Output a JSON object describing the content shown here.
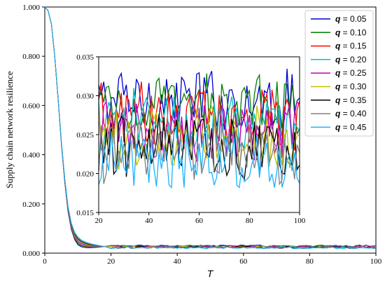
{
  "chart_data": [
    {
      "type": "line",
      "role": "main",
      "xlabel": "T",
      "ylabel": "Supply chain network resilience",
      "xlim": [
        0,
        100
      ],
      "ylim": [
        0,
        1
      ],
      "xticks": [
        0,
        20,
        40,
        60,
        80,
        100
      ],
      "yticks": [
        0.0,
        0.2,
        0.4,
        0.6,
        0.8,
        1.0
      ],
      "ytick_labels": [
        "0.000",
        "0.200",
        "0.400",
        "0.600",
        "0.800",
        "1.000"
      ],
      "legend_placement": "top-right",
      "decay_curve": {
        "x": [
          0,
          1,
          2,
          3,
          4,
          5,
          6,
          7,
          8,
          9,
          10,
          11,
          12,
          13,
          14,
          16,
          18,
          20
        ],
        "y": [
          1.0,
          0.985,
          0.93,
          0.8,
          0.63,
          0.45,
          0.3,
          0.18,
          0.11,
          0.07,
          0.05,
          0.04,
          0.035,
          0.032,
          0.03,
          0.028,
          0.027,
          0.026
        ]
      },
      "series": [
        {
          "q": "0.05",
          "name": "q = 0.05",
          "color": "#0000cc",
          "level": 0.0295
        },
        {
          "q": "0.10",
          "name": "q = 0.10",
          "color": "#008000",
          "level": 0.0285
        },
        {
          "q": "0.15",
          "name": "q = 0.15",
          "color": "#ff0000",
          "level": 0.0275
        },
        {
          "q": "0.20",
          "name": "q = 0.20",
          "color": "#00bfbf",
          "level": 0.0265
        },
        {
          "q": "0.25",
          "name": "q = 0.25",
          "color": "#bf00bf",
          "level": 0.0255
        },
        {
          "q": "0.30",
          "name": "q = 0.30",
          "color": "#bfbf00",
          "level": 0.0245
        },
        {
          "q": "0.35",
          "name": "q = 0.35",
          "color": "#000000",
          "level": 0.0235
        },
        {
          "q": "0.40",
          "name": "q = 0.40",
          "color": "#808080",
          "level": 0.0225
        },
        {
          "q": "0.45",
          "name": "q = 0.45",
          "color": "#1ab2ff",
          "level": 0.0215
        }
      ]
    },
    {
      "type": "line",
      "role": "inset",
      "xlim": [
        20,
        100
      ],
      "ylim": [
        0.015,
        0.035
      ],
      "xticks": [
        20,
        40,
        60,
        80,
        100
      ],
      "yticks": [
        0.015,
        0.02,
        0.025,
        0.03,
        0.035
      ],
      "ytick_labels": [
        "0.015",
        "0.020",
        "0.025",
        "0.030",
        "0.035"
      ]
    }
  ],
  "legend": {
    "q_symbol": "q",
    "items": [
      {
        "value": "= 0.05",
        "color": "#0000cc"
      },
      {
        "value": "= 0.10",
        "color": "#008000"
      },
      {
        "value": "= 0.15",
        "color": "#ff0000"
      },
      {
        "value": "= 0.20",
        "color": "#00bfbf"
      },
      {
        "value": "= 0.25",
        "color": "#bf00bf"
      },
      {
        "value": "= 0.30",
        "color": "#bfbf00"
      },
      {
        "value": "= 0.35",
        "color": "#000000"
      },
      {
        "value": "= 0.40",
        "color": "#808080"
      },
      {
        "value": "= 0.45",
        "color": "#1ab2ff"
      }
    ]
  }
}
